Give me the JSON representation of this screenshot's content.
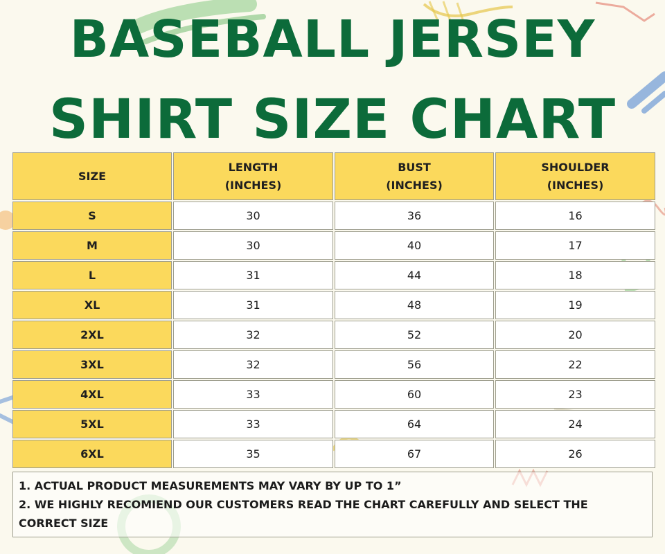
{
  "title_line1": "BASEBALL JERSEY",
  "title_line2": "SHIRT SIZE CHART",
  "headers": [
    {
      "line1": "SIZE",
      "line2": ""
    },
    {
      "line1": "LENGTH",
      "line2": "(INCHES)"
    },
    {
      "line1": "BUST",
      "line2": "(INCHES)"
    },
    {
      "line1": "SHOULDER",
      "line2": "(INCHES)"
    }
  ],
  "rows": [
    {
      "size": "S",
      "length": "30",
      "bust": "36",
      "shoulder": "16"
    },
    {
      "size": "M",
      "length": "30",
      "bust": "40",
      "shoulder": "17"
    },
    {
      "size": "L",
      "length": "31",
      "bust": "44",
      "shoulder": "18"
    },
    {
      "size": "XL",
      "length": "31",
      "bust": "48",
      "shoulder": "19"
    },
    {
      "size": "2XL",
      "length": "32",
      "bust": "52",
      "shoulder": "20"
    },
    {
      "size": "3XL",
      "length": "32",
      "bust": "56",
      "shoulder": "22"
    },
    {
      "size": "4XL",
      "length": "33",
      "bust": "60",
      "shoulder": "23"
    },
    {
      "size": "5XL",
      "length": "33",
      "bust": "64",
      "shoulder": "24"
    },
    {
      "size": "6XL",
      "length": "35",
      "bust": "67",
      "shoulder": "26"
    }
  ],
  "notes": [
    "1. ACTUAL PRODUCT MEASUREMENTS MAY VARY BY UP TO 1”",
    "2. WE HIGHLY RECOMIEND OUR CUSTOMERS READ THE CHART CAREFULLY AND SELECT THE CORRECT SIZE"
  ],
  "colors": {
    "title": "#0c6b3a",
    "header_fill": "#fbd95c",
    "cell_fill": "#ffffff",
    "background": "#fbf9ee"
  }
}
